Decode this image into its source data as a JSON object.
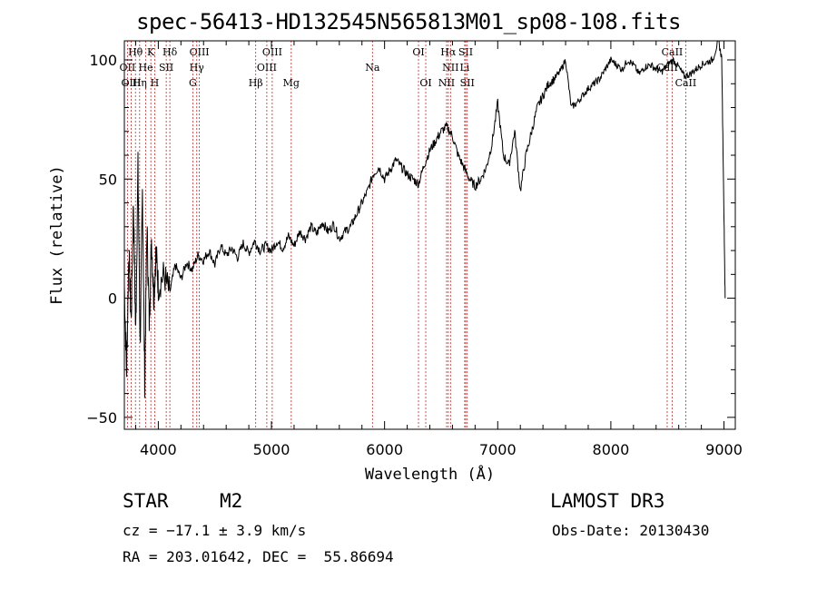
{
  "title": "spec-56413-HD132545N565813M01_sp08-108.fits",
  "chart_data": {
    "type": "line",
    "title": "spec-56413-HD132545N565813M01_sp08-108.fits",
    "xlabel": "Wavelength (Å)",
    "ylabel": "Flux (relative)",
    "xlim": [
      3700,
      9100
    ],
    "ylim": [
      -55,
      108
    ],
    "x_ticks": [
      "4000",
      "5000",
      "6000",
      "7000",
      "8000",
      "9000"
    ],
    "y_ticks": [
      "−50",
      "0",
      "50",
      "100"
    ],
    "grid": false,
    "series": [
      {
        "x": [
          3700,
          3720,
          3740,
          3760,
          3780,
          3800,
          3820,
          3840,
          3860,
          3880,
          3900,
          3920,
          3940,
          3960,
          3980,
          4000,
          4050,
          4100,
          4150,
          4200,
          4250,
          4300,
          4350,
          4400,
          4450,
          4500,
          4550,
          4600,
          4650,
          4700,
          4750,
          4800,
          4850,
          4900,
          4950,
          5000,
          5050,
          5100,
          5150,
          5200,
          5250,
          5300,
          5350,
          5400,
          5450,
          5500,
          5550,
          5600,
          5650,
          5700,
          5750,
          5800,
          5850,
          5900,
          5950,
          6000,
          6050,
          6100,
          6150,
          6200,
          6250,
          6300,
          6350,
          6400,
          6450,
          6500,
          6550,
          6600,
          6650,
          6700,
          6750,
          6800,
          6850,
          6900,
          6950,
          7000,
          7050,
          7100,
          7150,
          7200,
          7250,
          7300,
          7350,
          7400,
          7450,
          7500,
          7550,
          7600,
          7650,
          7700,
          7750,
          7800,
          7850,
          7900,
          7950,
          8000,
          8050,
          8100,
          8150,
          8200,
          8250,
          8300,
          8350,
          8400,
          8450,
          8500,
          8550,
          8600,
          8650,
          8700,
          8750,
          8800,
          8850,
          8900,
          8950,
          8980,
          9000,
          9010
        ],
        "y": [
          5,
          -30,
          20,
          -10,
          40,
          -15,
          55,
          -20,
          45,
          -35,
          30,
          -10,
          25,
          0,
          20,
          5,
          10,
          2,
          14,
          8,
          15,
          12,
          18,
          16,
          20,
          14,
          22,
          18,
          21,
          17,
          23,
          19,
          24,
          20,
          22,
          20,
          24,
          21,
          26,
          22,
          28,
          25,
          30,
          27,
          32,
          28,
          31,
          25,
          28,
          30,
          35,
          40,
          45,
          52,
          55,
          50,
          54,
          58,
          55,
          52,
          50,
          48,
          56,
          62,
          66,
          70,
          72,
          68,
          60,
          55,
          50,
          47,
          50,
          55,
          65,
          82,
          60,
          56,
          70,
          45,
          60,
          70,
          80,
          85,
          90,
          92,
          95,
          100,
          80,
          82,
          85,
          88,
          90,
          92,
          96,
          100,
          98,
          96,
          100,
          98,
          94,
          97,
          98,
          96,
          95,
          98,
          100,
          97,
          93,
          94,
          96,
          98,
          99,
          100,
          108,
          101,
          35,
          0
        ]
      }
    ],
    "lines": [
      {
        "label": "Hθ",
        "x": 3798,
        "row": 0
      },
      {
        "label": "K",
        "x": 3934,
        "row": 0
      },
      {
        "label": "Hδ",
        "x": 4102,
        "row": 0
      },
      {
        "label": "OIII",
        "x": 4363,
        "row": 0
      },
      {
        "label": "OIII",
        "x": 5007,
        "row": 0
      },
      {
        "label": "OI",
        "x": 6300,
        "row": 0
      },
      {
        "label": "Hα",
        "x": 6563,
        "row": 0
      },
      {
        "label": "SII",
        "x": 6717,
        "row": 0
      },
      {
        "label": "CaII",
        "x": 8542,
        "row": 0
      },
      {
        "label": "OII",
        "x": 3727,
        "row": 1
      },
      {
        "label": "He",
        "x": 3889,
        "row": 1
      },
      {
        "label": "SII",
        "x": 4070,
        "row": 1
      },
      {
        "label": "Hγ",
        "x": 4340,
        "row": 1
      },
      {
        "label": "OIII",
        "x": 4959,
        "row": 1
      },
      {
        "label": "Na",
        "x": 5893,
        "row": 1
      },
      {
        "label": "NII",
        "x": 6583,
        "row": 1
      },
      {
        "label": "Li",
        "x": 6708,
        "row": 1
      },
      {
        "label": "CaII",
        "x": 8498,
        "row": 1
      },
      {
        "label": "OIII",
        "x": 3760,
        "row": 2
      },
      {
        "label": "Hη",
        "x": 3835,
        "row": 2
      },
      {
        "label": "H",
        "x": 3968,
        "row": 2
      },
      {
        "label": "G",
        "x": 4305,
        "row": 2
      },
      {
        "label": "Hβ",
        "x": 4861,
        "row": 2
      },
      {
        "label": "Mg",
        "x": 5175,
        "row": 2
      },
      {
        "label": "OI",
        "x": 6364,
        "row": 2
      },
      {
        "label": "NII",
        "x": 6548,
        "row": 2
      },
      {
        "label": "SII",
        "x": 6731,
        "row": 2
      },
      {
        "label": "CaII",
        "x": 8662,
        "row": 2
      }
    ]
  },
  "info": {
    "class_label": "STAR",
    "subclass": "M2",
    "survey": "LAMOST DR3",
    "cz": "cz = −17.1 ± 3.9 km/s",
    "obs_date": "Obs-Date: 20130430",
    "coords": "RA = 203.01642, DEC =  55.86694"
  },
  "colors": {
    "spectrum": "#000000",
    "line_marker": "#cc2222",
    "axes": "#000000"
  }
}
